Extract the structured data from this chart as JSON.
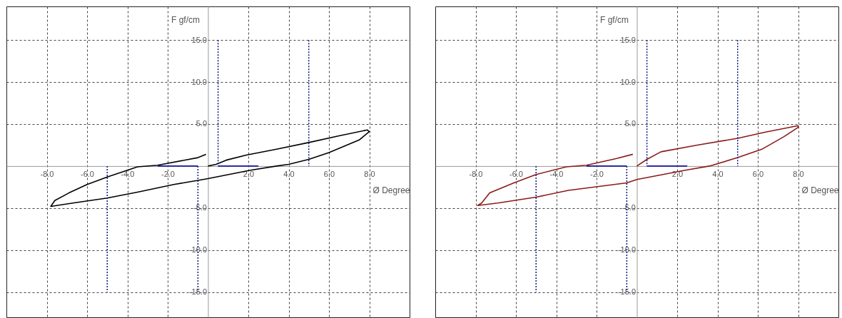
{
  "chart_data": [
    {
      "type": "line",
      "xlabel": "Ø Degree",
      "ylabel": "F gf/cm",
      "xlim": [
        -10,
        10
      ],
      "ylim": [
        -18,
        19
      ],
      "xticks": [
        {
          "value": -8,
          "label": "-8.0"
        },
        {
          "value": -6,
          "label": "-6.0"
        },
        {
          "value": -4,
          "label": "-4.0"
        },
        {
          "value": -2,
          "label": "-2.0"
        },
        {
          "value": 2,
          "label": "2.0"
        },
        {
          "value": 4,
          "label": "4.0"
        },
        {
          "value": 6,
          "label": "6.0"
        },
        {
          "value": 8,
          "label": "8.0"
        }
      ],
      "yticks": [
        {
          "value": -15,
          "label": "-15.0"
        },
        {
          "value": -10,
          "label": "-10.0"
        },
        {
          "value": -5,
          "label": "-5.0"
        },
        {
          "value": 5,
          "label": "5.0"
        },
        {
          "value": 10,
          "label": "10.0"
        },
        {
          "value": 15,
          "label": "15.0"
        }
      ],
      "grid": true,
      "series": [
        {
          "color": "#000000",
          "line_style": "solid",
          "x": [
            -0.1,
            -0.5,
            -2.5,
            -3.5,
            -5,
            -6,
            -6.9,
            -7.6,
            -7.8,
            -6.7,
            -5,
            -3.5,
            -1.7,
            -0.5,
            0,
            2.1,
            3.4,
            4,
            5,
            6,
            7.5,
            8,
            7.9,
            6.5,
            5,
            3.4,
            1.9,
            0.9,
            0.4,
            0
          ],
          "values": [
            1.4,
            1,
            0.1,
            -0.1,
            -1.3,
            -2.2,
            -3.2,
            -4.1,
            -4.8,
            -4.4,
            -3.8,
            -3.1,
            -2.2,
            -1.7,
            -1.5,
            -0.5,
            0,
            0.2,
            0.8,
            1.6,
            3.1,
            4.1,
            4.3,
            3.6,
            2.8,
            2,
            1.3,
            0.7,
            0.2,
            0
          ]
        },
        {
          "color": "#0a1a7a",
          "line_style": "dotted",
          "x": [
            -5,
            -5
          ],
          "values": [
            0,
            -15
          ]
        },
        {
          "color": "#0a1a7a",
          "line_style": "dotted",
          "x": [
            -0.5,
            -0.5
          ],
          "values": [
            0,
            -15
          ]
        },
        {
          "color": "#0a1a7a",
          "line_style": "dotted",
          "x": [
            0.5,
            0.5
          ],
          "values": [
            15,
            0
          ]
        },
        {
          "color": "#0a1a7a",
          "line_style": "dotted",
          "x": [
            5,
            5
          ],
          "values": [
            15,
            0
          ]
        },
        {
          "color": "#1a1aa0",
          "line_style": "solid",
          "x": [
            -2.5,
            -0.5
          ],
          "values": [
            0,
            0
          ]
        },
        {
          "color": "#1a1aa0",
          "line_style": "solid",
          "x": [
            0.5,
            2.5
          ],
          "values": [
            0,
            0
          ]
        }
      ]
    },
    {
      "type": "line",
      "xlabel": "Ø Degree",
      "ylabel": "F gf/cm",
      "xlim": [
        -10,
        10
      ],
      "ylim": [
        -18,
        19
      ],
      "xticks": [
        {
          "value": -8,
          "label": "-8.0"
        },
        {
          "value": -6,
          "label": "-6.0"
        },
        {
          "value": -4,
          "label": "-4.0"
        },
        {
          "value": -2,
          "label": "-2.0"
        },
        {
          "value": 2,
          "label": "2.0"
        },
        {
          "value": 4,
          "label": "4.0"
        },
        {
          "value": 6,
          "label": "6.0"
        },
        {
          "value": 8,
          "label": "8.0"
        }
      ],
      "yticks": [
        {
          "value": -15,
          "label": "-15.0"
        },
        {
          "value": -10,
          "label": "-10.0"
        },
        {
          "value": -5,
          "label": "-5.0"
        },
        {
          "value": 5,
          "label": "5.0"
        },
        {
          "value": 10,
          "label": "10.0"
        },
        {
          "value": 15,
          "label": "15.0"
        }
      ],
      "grid": true,
      "series": [
        {
          "color": "#8b1a1a",
          "line_style": "solid",
          "x": [
            -0.2,
            -1,
            -2.5,
            -3.5,
            -5,
            -6.1,
            -7.3,
            -7.7,
            -7.9,
            -6.9,
            -5,
            -3.4,
            -0.5,
            0,
            2.4,
            3.6,
            5,
            6.2,
            7.3,
            8,
            8,
            6.3,
            5,
            3,
            1.2,
            0.5,
            0
          ],
          "values": [
            1.4,
            0.9,
            0.1,
            -0.1,
            -1,
            -2,
            -3.2,
            -4.4,
            -4.7,
            -4.4,
            -3.7,
            -2.9,
            -2,
            -1.6,
            -0.5,
            0,
            1,
            2,
            3.5,
            4.6,
            4.8,
            4,
            3.3,
            2.5,
            1.7,
            0.8,
            0
          ]
        },
        {
          "color": "#0a1a7a",
          "line_style": "dotted",
          "x": [
            -5,
            -5
          ],
          "values": [
            0,
            -15
          ]
        },
        {
          "color": "#0a1a7a",
          "line_style": "dotted",
          "x": [
            -0.5,
            -0.5
          ],
          "values": [
            0,
            -15
          ]
        },
        {
          "color": "#0a1a7a",
          "line_style": "dotted",
          "x": [
            0.5,
            0.5
          ],
          "values": [
            15,
            0
          ]
        },
        {
          "color": "#0a1a7a",
          "line_style": "dotted",
          "x": [
            5,
            5
          ],
          "values": [
            15,
            0
          ]
        },
        {
          "color": "#1a1aa0",
          "line_style": "solid",
          "x": [
            -2.5,
            -0.5
          ],
          "values": [
            0,
            0
          ]
        },
        {
          "color": "#1a1aa0",
          "line_style": "solid",
          "x": [
            0.5,
            2.5
          ],
          "values": [
            0,
            0
          ]
        }
      ]
    }
  ]
}
